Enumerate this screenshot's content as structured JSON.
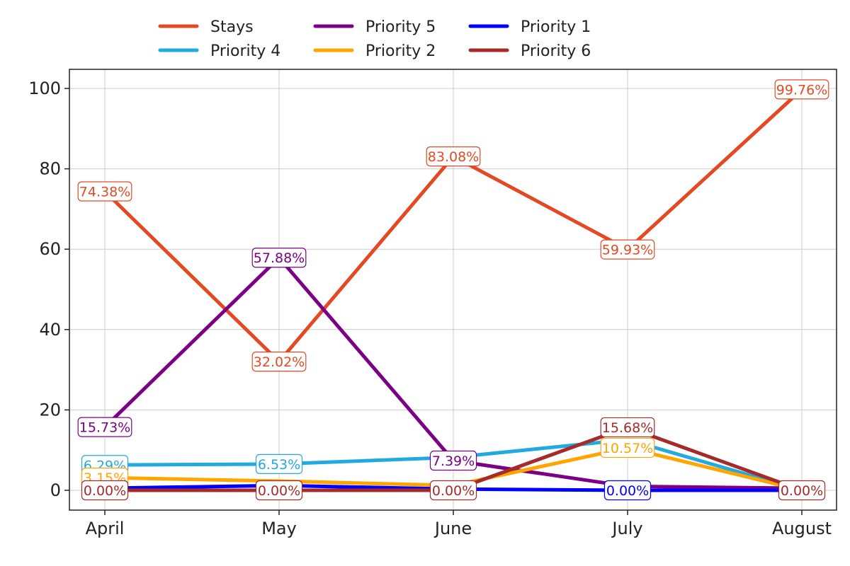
{
  "chart_data": {
    "type": "line",
    "title": "",
    "xlabel": "",
    "ylabel": "",
    "categories": [
      "April",
      "May",
      "June",
      "July",
      "August"
    ],
    "ylim": [
      -5,
      105
    ],
    "yticks": [
      0,
      20,
      40,
      60,
      80,
      100
    ],
    "grid": true,
    "legend_position": "top",
    "series": [
      {
        "name": "Stays",
        "color": "#e34a24",
        "values": [
          74.38,
          32.02,
          83.08,
          59.93,
          99.76
        ],
        "labels": [
          "74.38%",
          "32.02%",
          "83.08%",
          "59.93%",
          "99.76%"
        ]
      },
      {
        "name": "Priority 4",
        "color": "#22aae0",
        "values": [
          6.29,
          6.53,
          8.2,
          12.6,
          0.0
        ],
        "labels": [
          "6.29%",
          "6.53%",
          "",
          "",
          ""
        ]
      },
      {
        "name": "Priority 5",
        "color": "#7b0085",
        "values": [
          15.73,
          57.88,
          7.39,
          1.0,
          0.5
        ],
        "labels": [
          "15.73%",
          "57.88%",
          "7.39%",
          "",
          ""
        ]
      },
      {
        "name": "Priority 2",
        "color": "#ffa500",
        "values": [
          3.15,
          2.3,
          1.2,
          10.57,
          0.0
        ],
        "labels": [
          "3.15%",
          "",
          "",
          "10.57%",
          ""
        ]
      },
      {
        "name": "Priority 1",
        "color": "#0000ff",
        "values": [
          0.5,
          1.2,
          0.3,
          0.0,
          0.0
        ],
        "labels": [
          "",
          "",
          "",
          "0.00%",
          ""
        ]
      },
      {
        "name": "Priority 6",
        "color": "#a52a2a",
        "values": [
          0.0,
          0.0,
          0.0,
          15.68,
          0.0
        ],
        "labels": [
          "0.00%",
          "0.00%",
          "0.00%",
          "15.68%",
          "0.00%"
        ]
      }
    ]
  }
}
